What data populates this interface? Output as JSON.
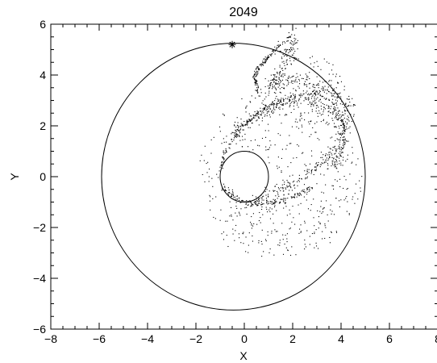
{
  "chart_data": {
    "type": "scatter",
    "title": "2049",
    "xlabel": "X",
    "ylabel": "Y",
    "xlim": [
      -8,
      8
    ],
    "ylim": [
      -6,
      6
    ],
    "xticks": [
      -8,
      -6,
      -4,
      -2,
      0,
      2,
      4,
      6,
      8
    ],
    "yticks": [
      -6,
      -4,
      -2,
      0,
      2,
      4,
      6
    ],
    "xtick_labels": [
      "−8",
      "−6",
      "−4",
      "−2",
      "0",
      "2",
      "4",
      "6",
      "8"
    ],
    "ytick_labels": [
      "−6",
      "−4",
      "−2",
      "0",
      "2",
      "4",
      "6"
    ],
    "grid": false,
    "legend": "none",
    "curves": [
      {
        "kind": "circle",
        "cx": 0,
        "cy": 0,
        "r": 1
      },
      {
        "kind": "ellipse",
        "cx": -0.45,
        "cy": 0,
        "rx": 5.45,
        "ry": 5.25
      }
    ],
    "markers": [
      {
        "kind": "asterisk",
        "x": -0.5,
        "y": 5.2
      }
    ],
    "streams": [
      {
        "path": [
          [
            -1.0,
            0.15
          ],
          [
            -0.85,
            0.9
          ],
          [
            -0.3,
            1.8
          ],
          [
            0.6,
            2.6
          ],
          [
            1.7,
            3.1
          ],
          [
            2.9,
            3.3
          ],
          [
            3.7,
            2.9
          ],
          [
            4.1,
            2.1
          ],
          [
            4.1,
            1.3
          ],
          [
            3.8,
            0.5
          ]
        ],
        "spread": 0.05,
        "count": 260
      },
      {
        "path": [
          [
            -0.6,
            1.6
          ],
          [
            0.4,
            2.4
          ],
          [
            1.6,
            2.9
          ],
          [
            2.8,
            3.05
          ],
          [
            3.6,
            2.6
          ],
          [
            3.9,
            1.8
          ]
        ],
        "spread": 0.14,
        "count": 200
      },
      {
        "path": [
          [
            0.55,
            3.35
          ],
          [
            0.4,
            3.9
          ],
          [
            0.65,
            4.4
          ],
          [
            1.2,
            4.95
          ],
          [
            1.9,
            5.6
          ]
        ],
        "spread": 0.05,
        "count": 150
      },
      {
        "path": [
          [
            1.1,
            3.4
          ],
          [
            1.45,
            4.2
          ],
          [
            1.8,
            4.9
          ],
          [
            2.1,
            5.5
          ]
        ],
        "spread": 0.12,
        "count": 110
      },
      {
        "path": [
          [
            0.6,
            3.4
          ],
          [
            1.3,
            3.7
          ],
          [
            2.3,
            3.8
          ],
          [
            3.3,
            3.5
          ],
          [
            4.2,
            2.8
          ]
        ],
        "spread": 0.16,
        "count": 130
      },
      {
        "path": [
          [
            -0.9,
            -0.35
          ],
          [
            -0.3,
            -0.9
          ],
          [
            0.6,
            -1.1
          ],
          [
            1.6,
            -0.9
          ],
          [
            2.4,
            -0.6
          ],
          [
            2.8,
            -0.45
          ]
        ],
        "spread": 0.06,
        "count": 170
      },
      {
        "path": [
          [
            0.3,
            -0.95
          ],
          [
            1.4,
            -0.5
          ],
          [
            2.3,
            -0.1
          ],
          [
            3.0,
            0.4
          ],
          [
            3.6,
            1.0
          ]
        ],
        "spread": 0.1,
        "count": 120
      },
      {
        "path": [
          [
            3.6,
            0.3
          ],
          [
            3.9,
            1.1
          ],
          [
            4.15,
            2.0
          ],
          [
            4.3,
            3.0
          ]
        ],
        "spread": 0.18,
        "count": 120
      }
    ],
    "scatter_clouds": [
      {
        "center": [
          1.5,
          0.2
        ],
        "rx": 3.4,
        "ry": 3.3,
        "count": 420,
        "seed": 7
      },
      {
        "center": [
          2.6,
          3.4
        ],
        "rx": 1.6,
        "ry": 1.4,
        "count": 160,
        "seed": 13
      },
      {
        "center": [
          1.2,
          -2.2
        ],
        "rx": 2.6,
        "ry": 1.0,
        "count": 70,
        "seed": 21
      }
    ]
  }
}
